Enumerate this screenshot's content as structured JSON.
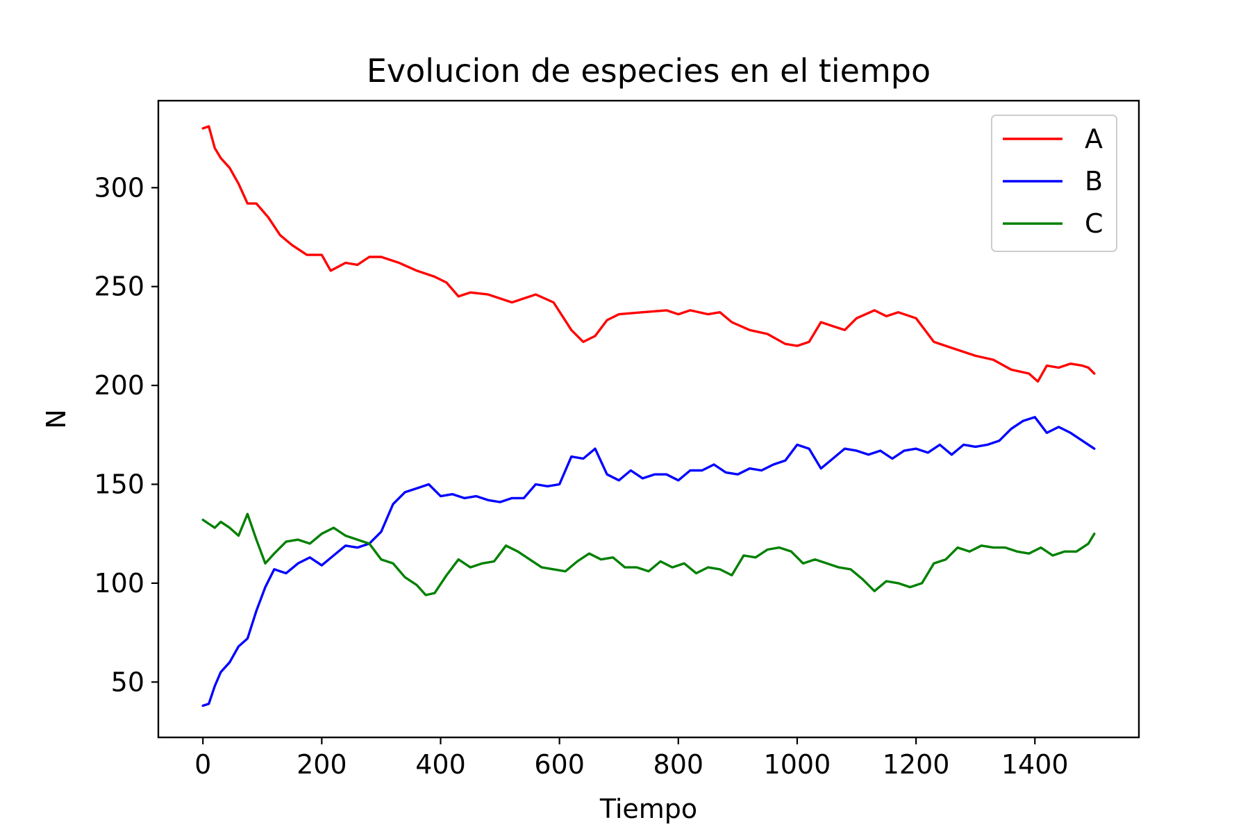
{
  "chart_data": {
    "type": "line",
    "title": "Evolucion de especies en el tiempo",
    "xlabel": "Tiempo",
    "ylabel": "N",
    "xlim": [
      -75,
      1575
    ],
    "ylim": [
      22,
      344
    ],
    "x_ticks": [
      0,
      200,
      400,
      600,
      800,
      1000,
      1200,
      1400
    ],
    "x_tick_labels": [
      "0",
      "200",
      "400",
      "600",
      "800",
      "1000",
      "1200",
      "1400"
    ],
    "y_ticks": [
      50,
      100,
      150,
      200,
      250,
      300
    ],
    "y_tick_labels": [
      "50",
      "100",
      "150",
      "200",
      "250",
      "300"
    ],
    "grid": false,
    "legend_position": "top-right",
    "series": [
      {
        "name": "A",
        "color": "#ff0000",
        "x": [
          0,
          10,
          20,
          30,
          45,
          60,
          75,
          90,
          110,
          130,
          150,
          175,
          200,
          215,
          240,
          260,
          280,
          300,
          330,
          360,
          390,
          410,
          430,
          450,
          480,
          520,
          560,
          590,
          620,
          640,
          660,
          680,
          700,
          740,
          780,
          800,
          820,
          850,
          870,
          890,
          920,
          950,
          980,
          1000,
          1020,
          1040,
          1060,
          1080,
          1100,
          1130,
          1150,
          1170,
          1200,
          1230,
          1260,
          1300,
          1330,
          1360,
          1390,
          1405,
          1420,
          1440,
          1460,
          1480,
          1490,
          1500
        ],
        "values": [
          330,
          331,
          320,
          315,
          310,
          302,
          292,
          292,
          285,
          276,
          271,
          266,
          266,
          258,
          262,
          261,
          265,
          265,
          262,
          258,
          255,
          252,
          245,
          247,
          246,
          242,
          246,
          242,
          228,
          222,
          225,
          233,
          236,
          237,
          238,
          236,
          238,
          236,
          237,
          232,
          228,
          226,
          221,
          220,
          222,
          232,
          230,
          228,
          234,
          238,
          235,
          237,
          234,
          222,
          219,
          215,
          213,
          208,
          206,
          202,
          210,
          209,
          211,
          210,
          209,
          206
        ]
      },
      {
        "name": "B",
        "color": "#0000ff",
        "x": [
          0,
          10,
          20,
          30,
          45,
          60,
          75,
          90,
          105,
          120,
          140,
          160,
          180,
          200,
          220,
          240,
          260,
          280,
          300,
          320,
          340,
          360,
          380,
          400,
          420,
          440,
          460,
          480,
          500,
          520,
          540,
          560,
          580,
          600,
          620,
          640,
          660,
          680,
          700,
          720,
          740,
          760,
          780,
          800,
          820,
          840,
          860,
          880,
          900,
          920,
          940,
          960,
          980,
          1000,
          1020,
          1040,
          1060,
          1080,
          1100,
          1120,
          1140,
          1160,
          1180,
          1200,
          1220,
          1240,
          1260,
          1280,
          1300,
          1320,
          1340,
          1360,
          1380,
          1400,
          1420,
          1440,
          1460,
          1480,
          1500
        ],
        "values": [
          38,
          39,
          48,
          55,
          60,
          68,
          72,
          86,
          98,
          107,
          105,
          110,
          113,
          109,
          114,
          119,
          118,
          120,
          126,
          140,
          146,
          148,
          150,
          144,
          145,
          143,
          144,
          142,
          141,
          143,
          143,
          150,
          149,
          150,
          164,
          163,
          168,
          155,
          152,
          157,
          153,
          155,
          155,
          152,
          157,
          157,
          160,
          156,
          155,
          158,
          157,
          160,
          162,
          170,
          168,
          158,
          163,
          168,
          167,
          165,
          167,
          163,
          167,
          168,
          166,
          170,
          165,
          170,
          169,
          170,
          172,
          178,
          182,
          184,
          176,
          179,
          176,
          172,
          168
        ]
      },
      {
        "name": "C",
        "color": "#008000",
        "x": [
          0,
          10,
          20,
          30,
          45,
          60,
          75,
          90,
          105,
          120,
          140,
          160,
          180,
          200,
          220,
          240,
          260,
          280,
          300,
          320,
          340,
          360,
          375,
          390,
          410,
          430,
          450,
          470,
          490,
          510,
          530,
          550,
          570,
          590,
          610,
          630,
          650,
          670,
          690,
          710,
          730,
          750,
          770,
          790,
          810,
          830,
          850,
          870,
          890,
          910,
          930,
          950,
          970,
          990,
          1010,
          1030,
          1050,
          1070,
          1090,
          1110,
          1130,
          1150,
          1170,
          1190,
          1210,
          1230,
          1250,
          1270,
          1290,
          1310,
          1330,
          1350,
          1370,
          1390,
          1410,
          1430,
          1450,
          1470,
          1490,
          1500
        ],
        "values": [
          132,
          130,
          128,
          131,
          128,
          124,
          135,
          122,
          110,
          115,
          121,
          122,
          120,
          125,
          128,
          124,
          122,
          120,
          112,
          110,
          103,
          99,
          94,
          95,
          104,
          112,
          108,
          110,
          111,
          119,
          116,
          112,
          108,
          107,
          106,
          111,
          115,
          112,
          113,
          108,
          108,
          106,
          111,
          108,
          110,
          105,
          108,
          107,
          104,
          114,
          113,
          117,
          118,
          116,
          110,
          112,
          110,
          108,
          107,
          102,
          96,
          101,
          100,
          98,
          100,
          110,
          112,
          118,
          116,
          119,
          118,
          118,
          116,
          115,
          118,
          114,
          116,
          116,
          120,
          125
        ]
      }
    ]
  }
}
